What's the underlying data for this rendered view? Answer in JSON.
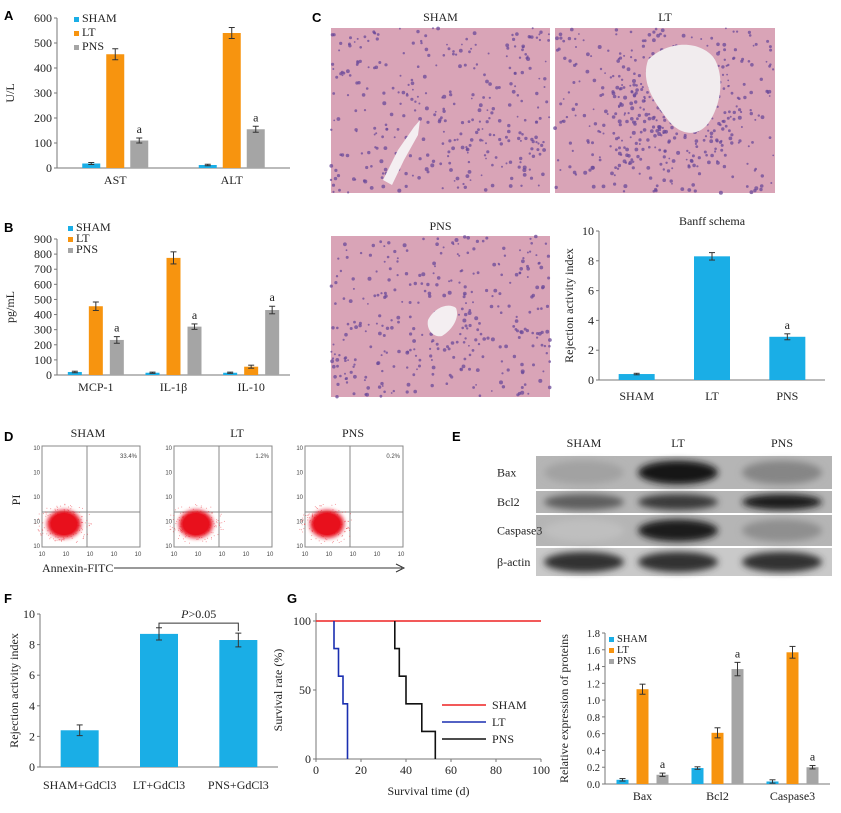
{
  "panels": {
    "A": "A",
    "B": "B",
    "C": "C",
    "D": "D",
    "E": "E",
    "F": "F",
    "G": "G"
  },
  "colors": {
    "sham": "#1aaee6",
    "lt": "#f7940f",
    "pns": "#a5a5a5",
    "sham_line": "#ee2222",
    "lt_line": "#1a2fb0",
    "pns_line": "#111111",
    "tissue_bg": "#d9a4b7",
    "nucleus": "#6a4a9a",
    "flow_dot": "#e8101c"
  },
  "chart_data": [
    {
      "id": "A",
      "type": "bar",
      "categories": [
        "AST",
        "ALT"
      ],
      "series": [
        {
          "name": "SHAM",
          "values": [
            18,
            12
          ],
          "errors": [
            4,
            3
          ]
        },
        {
          "name": "LT",
          "values": [
            455,
            540
          ],
          "errors": [
            22,
            22
          ]
        },
        {
          "name": "PNS",
          "values": [
            110,
            155
          ],
          "errors": [
            10,
            12
          ]
        }
      ],
      "significance": [
        [
          "",
          "",
          "a"
        ],
        [
          "",
          "",
          "a"
        ]
      ],
      "ylabel": "U/L",
      "ylim": [
        0,
        600
      ],
      "yticks": [
        0,
        100,
        200,
        300,
        400,
        500,
        600
      ],
      "legend": "top-left"
    },
    {
      "id": "B",
      "type": "bar",
      "categories": [
        "MCP-1",
        "IL-1β",
        "IL-10"
      ],
      "series": [
        {
          "name": "SHAM",
          "values": [
            20,
            15,
            15
          ],
          "errors": [
            5,
            4,
            4
          ]
        },
        {
          "name": "LT",
          "values": [
            455,
            775,
            55
          ],
          "errors": [
            28,
            40,
            10
          ]
        },
        {
          "name": "PNS",
          "values": [
            232,
            320,
            430
          ],
          "errors": [
            22,
            18,
            25
          ]
        }
      ],
      "significance": [
        [
          "",
          "",
          "a"
        ],
        [
          "",
          "",
          "a"
        ],
        [
          "",
          "",
          "a"
        ]
      ],
      "ylabel": "pg/mL",
      "ylim": [
        0,
        900
      ],
      "yticks": [
        0,
        100,
        200,
        300,
        400,
        500,
        600,
        700,
        800,
        900
      ],
      "legend": "top-left"
    },
    {
      "id": "C-Banff",
      "type": "bar",
      "title": "Banff schema",
      "categories": [
        "SHAM",
        "LT",
        "PNS"
      ],
      "values": [
        0.4,
        8.3,
        2.9
      ],
      "errors": [
        0.05,
        0.25,
        0.2
      ],
      "significance": [
        "",
        "",
        "a"
      ],
      "ylabel": "Rejection activity index",
      "ylim": [
        0,
        10
      ],
      "yticks": [
        0,
        2,
        4,
        6,
        8,
        10
      ]
    },
    {
      "id": "F",
      "type": "bar",
      "categories": [
        "SHAM+GdCl3",
        "LT+GdCl3",
        "PNS+GdCl3"
      ],
      "values": [
        2.4,
        8.7,
        8.3
      ],
      "errors": [
        0.35,
        0.4,
        0.45
      ],
      "comparison": {
        "between": [
          "LT+GdCl3",
          "PNS+GdCl3"
        ],
        "label_p": "P",
        "label_rest": ">0.05"
      },
      "ylabel": "Rejection activity index",
      "ylim": [
        0,
        10
      ],
      "yticks": [
        0,
        2,
        4,
        6,
        8,
        10
      ]
    },
    {
      "id": "G-survival",
      "type": "line",
      "series": [
        {
          "name": "SHAM",
          "x": [
            0,
            100
          ],
          "y": [
            100,
            100
          ]
        },
        {
          "name": "LT",
          "x": [
            8,
            8,
            10,
            10,
            12,
            12,
            14,
            14
          ],
          "y": [
            100,
            80,
            80,
            60,
            60,
            40,
            40,
            0
          ]
        },
        {
          "name": "PNS",
          "x": [
            35,
            35,
            37,
            37,
            40,
            40,
            47,
            47,
            53,
            53
          ],
          "y": [
            100,
            80,
            80,
            60,
            60,
            40,
            40,
            20,
            20,
            0
          ]
        }
      ],
      "xlabel": "Survival time (d)",
      "ylabel": "Survival rate (%)",
      "xlim": [
        0,
        100
      ],
      "ylim": [
        0,
        100
      ],
      "xticks": [
        0,
        20,
        40,
        60,
        80,
        100
      ],
      "yticks": [
        0,
        50,
        100
      ],
      "legend": "bottom-right"
    },
    {
      "id": "G-proteins",
      "type": "bar",
      "categories": [
        "Bax",
        "Bcl2",
        "Caspase3"
      ],
      "series": [
        {
          "name": "SHAM",
          "values": [
            0.05,
            0.19,
            0.03
          ],
          "errors": [
            0.015,
            0.015,
            0.02
          ]
        },
        {
          "name": "LT",
          "values": [
            1.13,
            0.61,
            1.57
          ],
          "errors": [
            0.06,
            0.06,
            0.07
          ]
        },
        {
          "name": "PNS",
          "values": [
            0.11,
            1.37,
            0.2
          ],
          "errors": [
            0.02,
            0.08,
            0.02
          ]
        }
      ],
      "significance": [
        [
          "",
          "",
          "a"
        ],
        [
          "",
          "",
          "a"
        ],
        [
          "",
          "",
          "a"
        ]
      ],
      "ylabel": "Relative expression of proteins",
      "ylim": [
        0,
        1.8
      ],
      "yticks": [
        0,
        0.2,
        0.4,
        0.6,
        0.8,
        1.0,
        1.2,
        1.4,
        1.6,
        1.8
      ],
      "legend": "top-left"
    }
  ],
  "histology": {
    "labels": [
      "SHAM",
      "LT",
      "PNS"
    ]
  },
  "flow": {
    "groups": [
      {
        "name": "SHAM",
        "percent": "33.4%"
      },
      {
        "name": "LT",
        "percent": "1.2%"
      },
      {
        "name": "PNS",
        "percent": "0.2%"
      }
    ],
    "ylabel": "PI",
    "xlabel": "Annexin-FITC",
    "tick_label": "10"
  },
  "western": {
    "groups": [
      "SHAM",
      "LT",
      "PNS"
    ],
    "proteins": [
      "Bax",
      "Bcl2",
      "Caspase3",
      "β-actin"
    ],
    "intensity": [
      [
        0.2,
        0.95,
        0.35
      ],
      [
        0.55,
        0.75,
        0.9
      ],
      [
        0.05,
        0.9,
        0.3
      ],
      [
        0.8,
        0.8,
        0.8
      ]
    ]
  }
}
